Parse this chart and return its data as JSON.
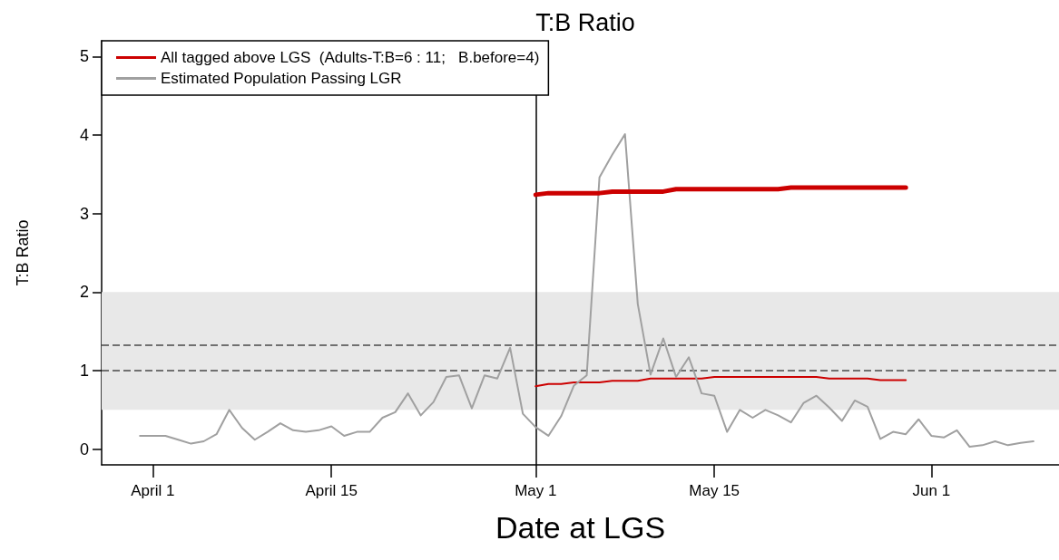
{
  "chart_data": {
    "type": "line",
    "title": "T:B Ratio",
    "xlabel": "Date at LGS",
    "ylabel": "T:B Ratio",
    "series": [
      {
        "name": "All tagged above LGS  (Adults-T:B=6 : 11;   B.before=4)",
        "color": "#cc0000",
        "x": [
          "--05-01",
          "--05-02",
          "--05-03",
          "--05-04",
          "--05-05",
          "--05-06",
          "--05-07",
          "--05-08",
          "--05-09",
          "--05-10",
          "--05-11",
          "--05-12",
          "--05-13",
          "--05-14",
          "--05-15",
          "--05-16",
          "--05-17",
          "--05-18",
          "--05-19",
          "--05-20",
          "--05-21",
          "--05-22",
          "--05-23",
          "--05-24",
          "--05-25",
          "--05-26",
          "--05-27",
          "--05-28",
          "--05-29",
          "--05-30"
        ],
        "values": [
          3.24,
          3.26,
          3.26,
          3.26,
          3.26,
          3.26,
          3.28,
          3.28,
          3.28,
          3.28,
          3.28,
          3.31,
          3.31,
          3.31,
          3.31,
          3.31,
          3.31,
          3.31,
          3.31,
          3.31,
          3.33,
          3.33,
          3.33,
          3.33,
          3.33,
          3.33,
          3.33,
          3.33,
          3.33,
          3.33
        ]
      },
      {
        "color": "#cc0000",
        "x": [
          "--05-01",
          "--05-02",
          "--05-03",
          "--05-04",
          "--05-05",
          "--05-06",
          "--05-07",
          "--05-08",
          "--05-09",
          "--05-10",
          "--05-11",
          "--05-12",
          "--05-13",
          "--05-14",
          "--05-15",
          "--05-16",
          "--05-17",
          "--05-18",
          "--05-19",
          "--05-20",
          "--05-21",
          "--05-22",
          "--05-23",
          "--05-24",
          "--05-25",
          "--05-26",
          "--05-27",
          "--05-28",
          "--05-29",
          "--05-30"
        ],
        "values": [
          0.8,
          0.83,
          0.83,
          0.85,
          0.85,
          0.85,
          0.87,
          0.87,
          0.87,
          0.9,
          0.9,
          0.9,
          0.9,
          0.9,
          0.92,
          0.92,
          0.92,
          0.92,
          0.92,
          0.92,
          0.92,
          0.92,
          0.92,
          0.9,
          0.9,
          0.9,
          0.9,
          0.88,
          0.88,
          0.88
        ]
      },
      {
        "name": "Estimated Population Passing LGR",
        "color": "#a0a0a0",
        "x": [
          "--03-31",
          "--04-01",
          "--04-02",
          "--04-03",
          "--04-04",
          "--04-05",
          "--04-06",
          "--04-07",
          "--04-08",
          "--04-09",
          "--04-10",
          "--04-11",
          "--04-12",
          "--04-13",
          "--04-14",
          "--04-15",
          "--04-16",
          "--04-17",
          "--04-18",
          "--04-19",
          "--04-20",
          "--04-21",
          "--04-22",
          "--04-23",
          "--04-24",
          "--04-25",
          "--04-26",
          "--04-27",
          "--04-28",
          "--04-29",
          "--04-30",
          "--05-01",
          "--05-02",
          "--05-03",
          "--05-04",
          "--05-05",
          "--05-06",
          "--05-07",
          "--05-08",
          "--05-09",
          "--05-10",
          "--05-11",
          "--05-12",
          "--05-13",
          "--05-14",
          "--05-15",
          "--05-16",
          "--05-17",
          "--05-18",
          "--05-19",
          "--05-20",
          "--05-21",
          "--05-22",
          "--05-23",
          "--05-24",
          "--05-25",
          "--05-26",
          "--05-27",
          "--05-28",
          "--05-29",
          "--05-30",
          "--05-31",
          "--06-01",
          "--06-02",
          "--06-03",
          "--06-04",
          "--06-05",
          "--06-06",
          "--06-07",
          "--06-08",
          "--06-09"
        ],
        "values": [
          0.17,
          0.17,
          0.17,
          0.12,
          0.07,
          0.1,
          0.19,
          0.5,
          0.27,
          0.12,
          0.22,
          0.33,
          0.24,
          0.22,
          0.24,
          0.29,
          0.17,
          0.22,
          0.22,
          0.4,
          0.47,
          0.71,
          0.43,
          0.6,
          0.92,
          0.94,
          0.52,
          0.94,
          0.9,
          1.29,
          0.45,
          0.28,
          0.17,
          0.42,
          0.81,
          0.94,
          3.46,
          3.75,
          4.01,
          1.85,
          0.95,
          1.41,
          0.92,
          1.17,
          0.71,
          0.68,
          0.22,
          0.5,
          0.4,
          0.5,
          0.43,
          0.34,
          0.59,
          0.68,
          0.53,
          0.36,
          0.62,
          0.54,
          0.13,
          0.22,
          0.19,
          0.38,
          0.17,
          0.15,
          0.24,
          0.03,
          0.05,
          0.1,
          0.05,
          0.08,
          0.1
        ]
      }
    ],
    "xlim": [
      "--03-28",
      "--06-11"
    ],
    "xticks": [
      {
        "value": "--04-01",
        "label": "April 1"
      },
      {
        "value": "--04-15",
        "label": "April 15"
      },
      {
        "value": "--05-01",
        "label": "May 1"
      },
      {
        "value": "--05-15",
        "label": "May 15"
      },
      {
        "value": "--06-01",
        "label": "Jun 1"
      }
    ],
    "ylim": [
      -0.2,
      5.2
    ],
    "yticks": [
      0,
      1,
      2,
      3,
      4,
      5
    ],
    "ref_lines": [
      {
        "axis": "y",
        "value": 1,
        "color": "#707070",
        "line_style": "dashed"
      },
      {
        "axis": "y",
        "value": 1.33,
        "color": "#707070",
        "line_style": "dashed"
      },
      {
        "axis": "x",
        "value": "--05-01",
        "color": "#000000",
        "line_style": "solid"
      }
    ],
    "bands": [
      {
        "axis": "y",
        "from": 0.5,
        "to": 2,
        "color": "#e8e8e8"
      }
    ],
    "legend": "top left",
    "grid": false,
    "marker": "none",
    "line_style": "solid"
  }
}
